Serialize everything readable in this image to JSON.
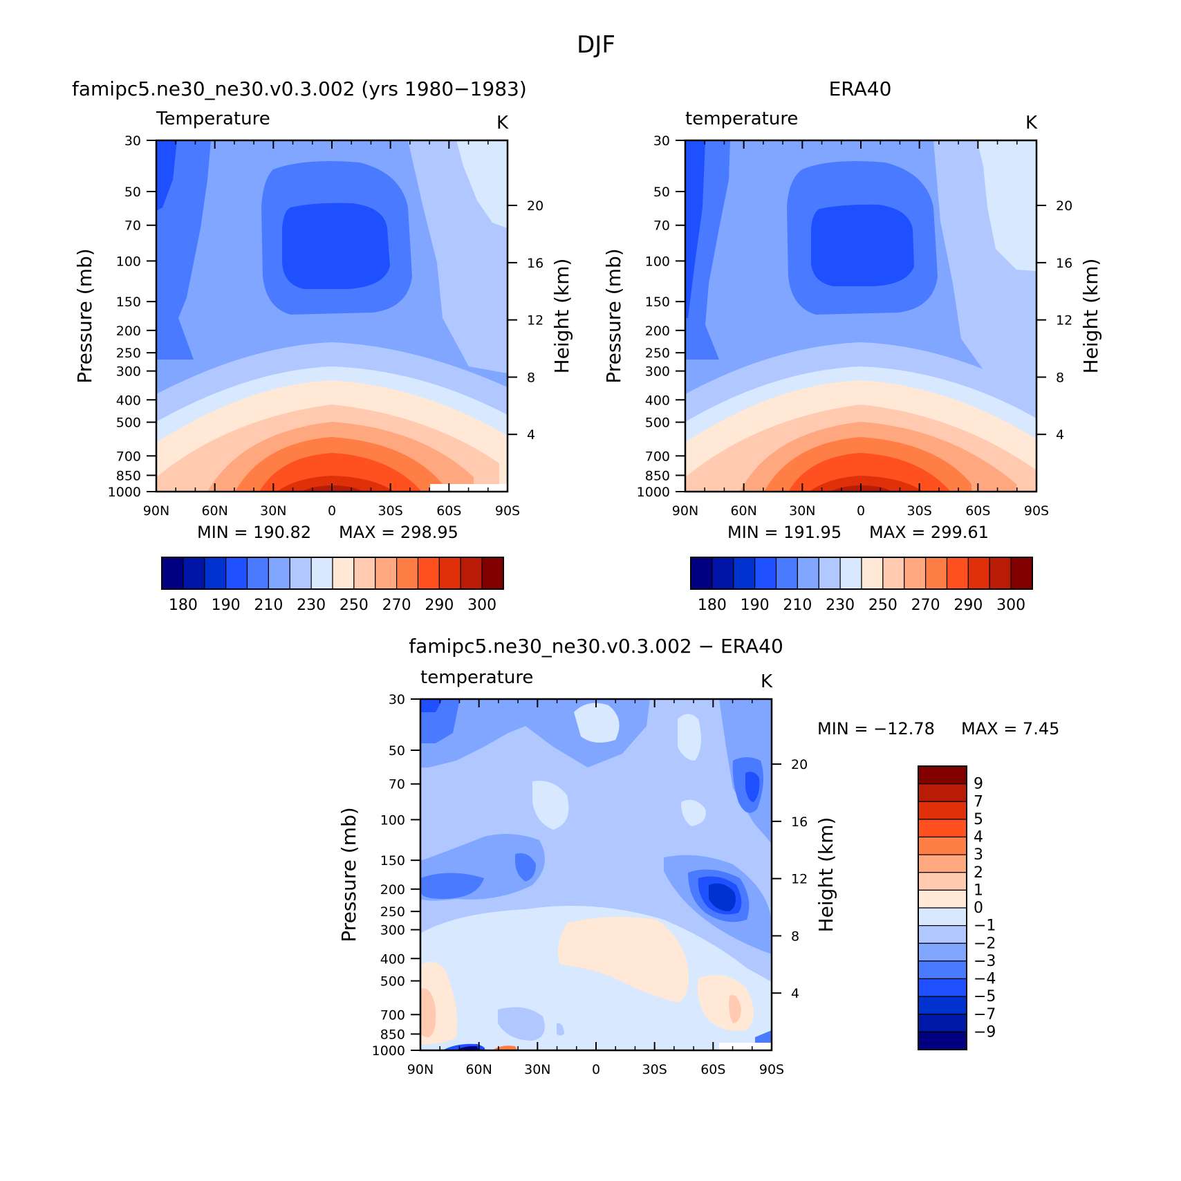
{
  "figure": {
    "title": "DJF"
  },
  "colors": {
    "temp_levels": [
      "#000080",
      "#0015a8",
      "#0032d0",
      "#1e50ff",
      "#4a7aff",
      "#80a6ff",
      "#b0c8ff",
      "#d8e8ff",
      "#ffe8d6",
      "#ffcab0",
      "#ffa880",
      "#ff7e46",
      "#ff5020",
      "#e0300a",
      "#b81c06",
      "#800000"
    ],
    "diff_levels": [
      "#000080",
      "#0018a8",
      "#0032d0",
      "#1e50ff",
      "#4a7aff",
      "#80a6ff",
      "#b0c8ff",
      "#d8e8ff",
      "#ffe8d6",
      "#ffcab0",
      "#ffa880",
      "#ff7e46",
      "#ff5020",
      "#e0300a",
      "#b81c06",
      "#800000"
    ]
  },
  "chart_data": [
    {
      "type": "heatmap",
      "panel": "model",
      "title": "famipc5.ne30_ne30.v0.3.002 (yrs 1980−1983)",
      "field_label": "Temperature",
      "units": "K",
      "ylabel": "Pressure (mb)",
      "y2label": "Height (km)",
      "x_ticks": [
        "90N",
        "60N",
        "30N",
        "0",
        "30S",
        "60S",
        "90S"
      ],
      "x_values": [
        90,
        60,
        30,
        0,
        -30,
        -60,
        -90
      ],
      "y_ticks": [
        "30",
        "50",
        "70",
        "100",
        "150",
        "200",
        "250",
        "300",
        "400",
        "500",
        "700",
        "850",
        "1000"
      ],
      "y_values": [
        30,
        50,
        70,
        100,
        150,
        200,
        250,
        300,
        400,
        500,
        700,
        850,
        1000
      ],
      "y2_ticks": [
        "4",
        "8",
        "12",
        "16",
        "20"
      ],
      "y2_values": [
        4,
        8,
        12,
        16,
        20
      ],
      "min_text": "MIN = 190.82",
      "max_text": "MAX = 298.95",
      "min": 190.82,
      "max": 298.95,
      "colorbar_labels": [
        "180",
        "190",
        "210",
        "230",
        "250",
        "270",
        "290",
        "300"
      ],
      "scale": "log-pressure"
    },
    {
      "type": "heatmap",
      "panel": "obs",
      "title": "ERA40",
      "field_label": "temperature",
      "units": "K",
      "ylabel": "Pressure (mb)",
      "y2label": "Height (km)",
      "x_ticks": [
        "90N",
        "60N",
        "30N",
        "0",
        "30S",
        "60S",
        "90S"
      ],
      "x_values": [
        90,
        60,
        30,
        0,
        -30,
        -60,
        -90
      ],
      "y_ticks": [
        "30",
        "50",
        "70",
        "100",
        "150",
        "200",
        "250",
        "300",
        "400",
        "500",
        "700",
        "850",
        "1000"
      ],
      "y_values": [
        30,
        50,
        70,
        100,
        150,
        200,
        250,
        300,
        400,
        500,
        700,
        850,
        1000
      ],
      "y2_ticks": [
        "4",
        "8",
        "12",
        "16",
        "20"
      ],
      "y2_values": [
        4,
        8,
        12,
        16,
        20
      ],
      "min_text": "MIN = 191.95",
      "max_text": "MAX = 299.61",
      "min": 191.95,
      "max": 299.61,
      "colorbar_labels": [
        "180",
        "190",
        "210",
        "230",
        "250",
        "270",
        "290",
        "300"
      ],
      "scale": "log-pressure"
    },
    {
      "type": "heatmap",
      "panel": "diff",
      "title": "famipc5.ne30_ne30.v0.3.002 − ERA40",
      "field_label": "temperature",
      "units": "K",
      "ylabel": "Pressure (mb)",
      "y2label": "Height (km)",
      "x_ticks": [
        "90N",
        "60N",
        "30N",
        "0",
        "30S",
        "60S",
        "90S"
      ],
      "x_values": [
        90,
        60,
        30,
        0,
        -30,
        -60,
        -90
      ],
      "y_ticks": [
        "30",
        "50",
        "70",
        "100",
        "150",
        "200",
        "250",
        "300",
        "400",
        "500",
        "700",
        "850",
        "1000"
      ],
      "y_values": [
        30,
        50,
        70,
        100,
        150,
        200,
        250,
        300,
        400,
        500,
        700,
        850,
        1000
      ],
      "y2_ticks": [
        "4",
        "8",
        "12",
        "16",
        "20"
      ],
      "y2_values": [
        4,
        8,
        12,
        16,
        20
      ],
      "min_text": "MIN = −12.78",
      "max_text": "MAX = 7.45",
      "min": -12.78,
      "max": 7.45,
      "colorbar_labels": [
        "9",
        "7",
        "5",
        "4",
        "3",
        "2",
        "1",
        "0",
        "−1",
        "−2",
        "−3",
        "−4",
        "−5",
        "−7",
        "−9"
      ],
      "scale": "log-pressure"
    }
  ]
}
